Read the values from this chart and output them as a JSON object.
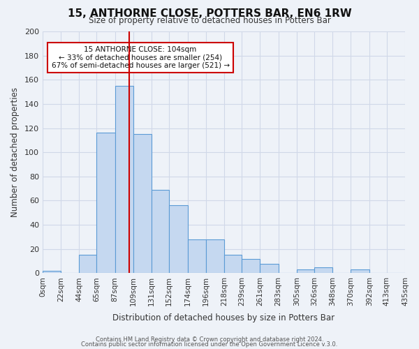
{
  "title": "15, ANTHORNE CLOSE, POTTERS BAR, EN6 1RW",
  "subtitle": "Size of property relative to detached houses in Potters Bar",
  "xlabel": "Distribution of detached houses by size in Potters Bar",
  "ylabel": "Number of detached properties",
  "bin_labels": [
    "0sqm",
    "22sqm",
    "44sqm",
    "65sqm",
    "87sqm",
    "109sqm",
    "131sqm",
    "152sqm",
    "174sqm",
    "196sqm",
    "218sqm",
    "239sqm",
    "261sqm",
    "283sqm",
    "305sqm",
    "326sqm",
    "348sqm",
    "370sqm",
    "392sqm",
    "413sqm",
    "435sqm"
  ],
  "bin_edges": [
    0,
    22,
    44,
    65,
    87,
    109,
    131,
    152,
    174,
    196,
    218,
    239,
    261,
    283,
    305,
    326,
    348,
    370,
    392,
    413,
    435
  ],
  "bar_heights": [
    2,
    0,
    15,
    116,
    155,
    115,
    69,
    56,
    28,
    28,
    15,
    12,
    8,
    0,
    3,
    5,
    0,
    3,
    0,
    0
  ],
  "bar_color": "#c5d8f0",
  "bar_edge_color": "#5b9bd5",
  "property_size": 104,
  "marker_line_color": "#cc0000",
  "ylim": [
    0,
    200
  ],
  "yticks": [
    0,
    20,
    40,
    60,
    80,
    100,
    120,
    140,
    160,
    180,
    200
  ],
  "annotation_title": "15 ANTHORNE CLOSE: 104sqm",
  "annotation_line1": "← 33% of detached houses are smaller (254)",
  "annotation_line2": "67% of semi-detached houses are larger (521) →",
  "annotation_box_color": "#ffffff",
  "annotation_box_edge": "#cc0000",
  "grid_color": "#d0d8e8",
  "bg_color": "#eef2f8",
  "footer1": "Contains HM Land Registry data © Crown copyright and database right 2024.",
  "footer2": "Contains public sector information licensed under the Open Government Licence v.3.0."
}
